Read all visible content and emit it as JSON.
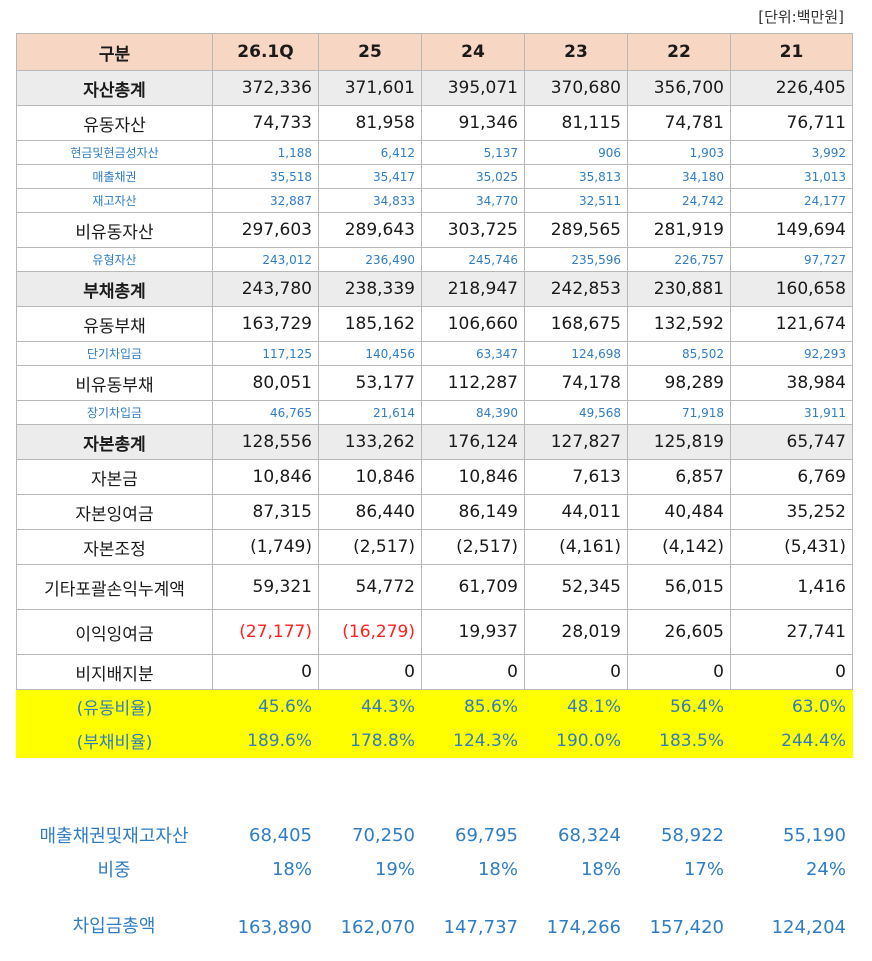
{
  "unit_label": "[단위:백만원]",
  "headers": [
    "구분",
    "26.1Q",
    "25",
    "24",
    "23",
    "22",
    "21"
  ],
  "rows": [
    {
      "label": "자산총계",
      "values": [
        "372,336",
        "371,601",
        "395,071",
        "370,680",
        "356,700",
        "226,405"
      ]
    },
    {
      "label": "유동자산",
      "values": [
        "74,733",
        "81,958",
        "91,346",
        "81,115",
        "74,781",
        "76,711"
      ]
    },
    {
      "label": "현금및현금성자산",
      "values": [
        "1,188",
        "6,412",
        "5,137",
        "906",
        "1,903",
        "3,992"
      ]
    },
    {
      "label": "매출채권",
      "values": [
        "35,518",
        "35,417",
        "35,025",
        "35,813",
        "34,180",
        "31,013"
      ]
    },
    {
      "label": "재고자산",
      "values": [
        "32,887",
        "34,833",
        "34,770",
        "32,511",
        "24,742",
        "24,177"
      ]
    },
    {
      "label": "비유동자산",
      "values": [
        "297,603",
        "289,643",
        "303,725",
        "289,565",
        "281,919",
        "149,694"
      ]
    },
    {
      "label": "유형자산",
      "values": [
        "243,012",
        "236,490",
        "245,746",
        "235,596",
        "226,757",
        "97,727"
      ]
    },
    {
      "label": "부채총계",
      "values": [
        "243,780",
        "238,339",
        "218,947",
        "242,853",
        "230,881",
        "160,658"
      ]
    },
    {
      "label": "유동부채",
      "values": [
        "163,729",
        "185,162",
        "106,660",
        "168,675",
        "132,592",
        "121,674"
      ]
    },
    {
      "label": "단기차입금",
      "values": [
        "117,125",
        "140,456",
        "63,347",
        "124,698",
        "85,502",
        "92,293"
      ]
    },
    {
      "label": "비유동부채",
      "values": [
        "80,051",
        "53,177",
        "112,287",
        "74,178",
        "98,289",
        "38,984"
      ]
    },
    {
      "label": "장기차입금",
      "values": [
        "46,765",
        "21,614",
        "84,390",
        "49,568",
        "71,918",
        "31,911"
      ]
    },
    {
      "label": "자본총계",
      "values": [
        "128,556",
        "133,262",
        "176,124",
        "127,827",
        "125,819",
        "65,747"
      ]
    },
    {
      "label": "자본금",
      "values": [
        "10,846",
        "10,846",
        "10,846",
        "7,613",
        "6,857",
        "6,769"
      ]
    },
    {
      "label": "자본잉여금",
      "values": [
        "87,315",
        "86,440",
        "86,149",
        "44,011",
        "40,484",
        "35,252"
      ]
    },
    {
      "label": "자본조정",
      "values": [
        "(1,749)",
        "(2,517)",
        "(2,517)",
        "(4,161)",
        "(4,142)",
        "(5,431)"
      ]
    },
    {
      "label": "기타포괄손익누계액",
      "values": [
        "59,321",
        "54,772",
        "61,709",
        "52,345",
        "56,015",
        "1,416"
      ]
    },
    {
      "label": "이익잉여금",
      "values": [
        "(27,177)",
        "(16,279)",
        "19,937",
        "28,019",
        "26,605",
        "27,741"
      ]
    },
    {
      "label": "비지배지분",
      "values": [
        "0",
        "0",
        "0",
        "0",
        "0",
        "0"
      ]
    },
    {
      "label": "(유동비율)",
      "values": [
        "45.6%",
        "44.3%",
        "85.6%",
        "48.1%",
        "56.4%",
        "63.0%"
      ]
    },
    {
      "label": "(부채비율)",
      "values": [
        "189.6%",
        "178.8%",
        "124.3%",
        "190.0%",
        "183.5%",
        "244.4%"
      ]
    }
  ],
  "negative_color": "#ff2020",
  "highlight_color": "#ffff00",
  "header_bg": "#f8d6c4",
  "extra_rows": [
    {
      "label": "매출채권및재고자산",
      "values": [
        "68,405",
        "70,250",
        "69,795",
        "68,324",
        "58,922",
        "55,190"
      ]
    },
    {
      "label": "비중",
      "values": [
        "18%",
        "19%",
        "18%",
        "18%",
        "17%",
        "24%"
      ]
    },
    {
      "label": "차입금총액",
      "values": [
        "163,890",
        "162,070",
        "147,737",
        "174,266",
        "157,420",
        "124,204"
      ]
    }
  ]
}
